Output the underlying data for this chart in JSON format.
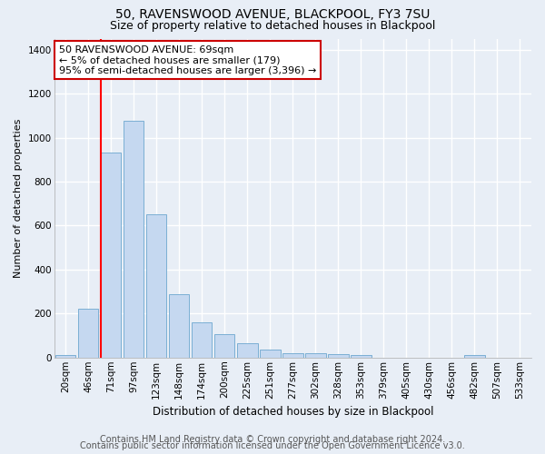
{
  "title1": "50, RAVENSWOOD AVENUE, BLACKPOOL, FY3 7SU",
  "title2": "Size of property relative to detached houses in Blackpool",
  "xlabel": "Distribution of detached houses by size in Blackpool",
  "ylabel": "Number of detached properties",
  "categories": [
    "20sqm",
    "46sqm",
    "71sqm",
    "97sqm",
    "123sqm",
    "148sqm",
    "174sqm",
    "200sqm",
    "225sqm",
    "251sqm",
    "277sqm",
    "302sqm",
    "328sqm",
    "353sqm",
    "379sqm",
    "405sqm",
    "430sqm",
    "456sqm",
    "482sqm",
    "507sqm",
    "533sqm"
  ],
  "values": [
    10,
    220,
    930,
    1075,
    650,
    290,
    160,
    105,
    65,
    35,
    20,
    20,
    15,
    12,
    0,
    0,
    0,
    0,
    10,
    0,
    0
  ],
  "bar_color": "#c5d8f0",
  "bar_edge_color": "#7bafd4",
  "red_line_index": 2,
  "annotation_text": "50 RAVENSWOOD AVENUE: 69sqm\n← 5% of detached houses are smaller (179)\n95% of semi-detached houses are larger (3,396) →",
  "annotation_box_color": "#ffffff",
  "annotation_box_edge_color": "#cc0000",
  "footer1": "Contains HM Land Registry data © Crown copyright and database right 2024.",
  "footer2": "Contains public sector information licensed under the Open Government Licence v3.0.",
  "ylim": [
    0,
    1450
  ],
  "yticks": [
    0,
    200,
    400,
    600,
    800,
    1000,
    1200,
    1400
  ],
  "bg_color": "#e8eef6",
  "plot_bg_color": "#e8eef6",
  "grid_color": "#ffffff",
  "title1_fontsize": 10,
  "title2_fontsize": 9,
  "xlabel_fontsize": 8.5,
  "ylabel_fontsize": 8,
  "tick_fontsize": 7.5,
  "footer_fontsize": 7,
  "annotation_fontsize": 8
}
